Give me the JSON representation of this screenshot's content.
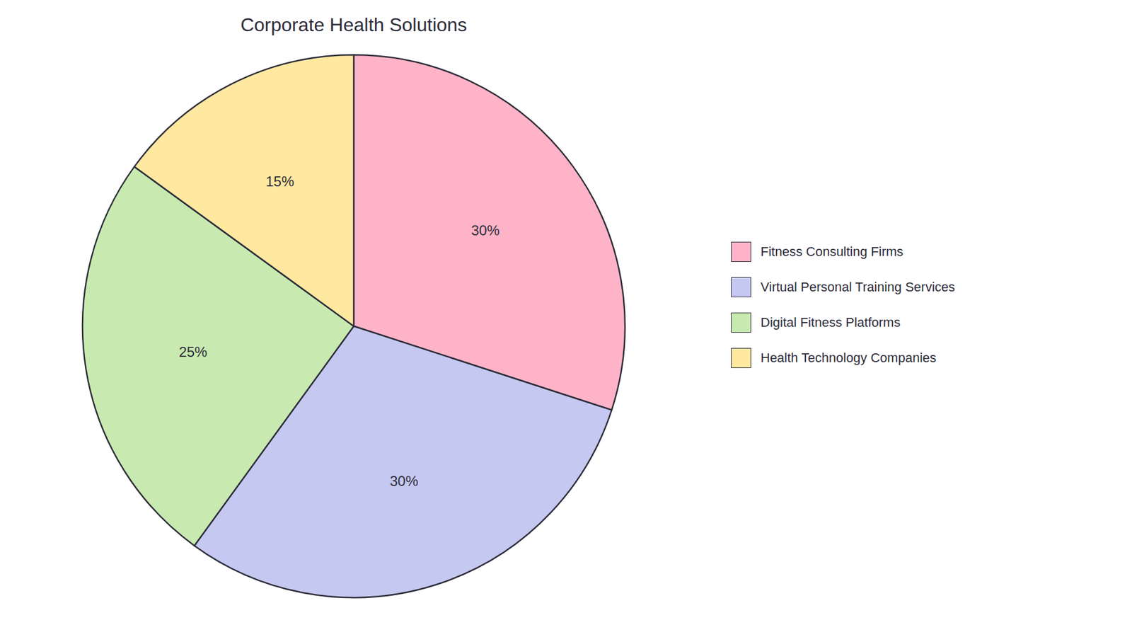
{
  "chart_data": {
    "type": "pie",
    "title": "Corporate Health Solutions",
    "categories": [
      "Fitness Consulting Firms",
      "Virtual Personal Training Services",
      "Digital Fitness Platforms",
      "Health Technology Companies"
    ],
    "values": [
      30,
      30,
      25,
      15
    ],
    "value_labels": [
      "30%",
      "30%",
      "25%",
      "15%"
    ],
    "colors": [
      "#FFB3C8",
      "#C5C8F0",
      "#C8EAB0",
      "#FFE8A0"
    ],
    "data_labels": true,
    "legend": "right"
  }
}
